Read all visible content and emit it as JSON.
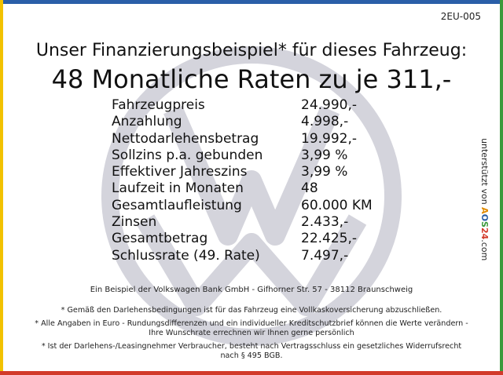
{
  "colors": {
    "top_border": "#2a5fa8",
    "left_border": "#f2c200",
    "right_border": "#3c9a3c",
    "bottom_border": "#d23a2a",
    "watermark": "#c8c8d0"
  },
  "code": "2EU-005",
  "headline": "Unser Finanzierungsbeispiel* für dieses Fahrzeug:",
  "title": "48 Monatliche Raten zu je 311,-",
  "rows": [
    {
      "label": "Fahrzeugpreis",
      "value": "24.990,-"
    },
    {
      "label": "Anzahlung",
      "value": "4.998,-"
    },
    {
      "label": "Nettodarlehensbetrag",
      "value": "19.992,-"
    },
    {
      "label": "Sollzins p.a. gebunden",
      "value": "3,99 %"
    },
    {
      "label": "Effektiver Jahreszins",
      "value": "3,99 %"
    },
    {
      "label": "Laufzeit in Monaten",
      "value": "48"
    },
    {
      "label": "Gesamtlaufleistung",
      "value": "60.000 KM"
    },
    {
      "label": "Zinsen",
      "value": "2.433,-"
    },
    {
      "label": "Gesamtbetrag",
      "value": "22.425,-"
    },
    {
      "label": "Schlussrate (49. Rate)",
      "value": "7.497,-"
    }
  ],
  "side": {
    "prefix": "unterstützt von ",
    "logo_a": "A",
    "logo_o": "O",
    "logo_s": "S",
    "logo_24": "24",
    "suffix": ".com"
  },
  "bank": "Ein Beispiel der Volkswagen Bank GmbH - Gifhorner Str. 57 - 38112 Braunschweig",
  "notes": [
    "* Gemäß den Darlehensbedingungen ist für das Fahrzeug eine Vollkaskoversicherung abzuschließen.",
    "* Alle Angaben in Euro - Rundungsdifferenzen und ein individueller Kreditschutzbrief können die Werte verändern - Ihre Wunschrate errechnen wir Ihnen gerne persönlich",
    "* Ist der Darlehens-/Leasingnehmer Verbraucher, besteht nach Vertragsschluss ein gesetzliches Widerrufsrecht nach § 495 BGB."
  ]
}
